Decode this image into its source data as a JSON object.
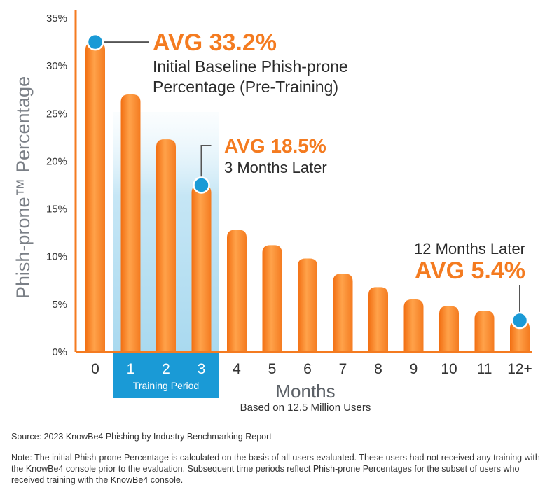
{
  "chart_data": {
    "type": "bar",
    "categories": [
      "0",
      "1",
      "2",
      "3",
      "4",
      "5",
      "6",
      "7",
      "8",
      "9",
      "10",
      "11",
      "12+"
    ],
    "values": [
      32.5,
      27,
      22.3,
      17.5,
      12.8,
      11.2,
      9.8,
      8.2,
      6.8,
      5.5,
      4.8,
      4.3,
      3.3
    ],
    "ylabel": "Phish-prone™ Percentage",
    "xlabel": "Months",
    "subtitle": "Based on 12.5 Million Users",
    "ylim": [
      0,
      35
    ],
    "yticks": [
      "0%",
      "5%",
      "10%",
      "15%",
      "20%",
      "25%",
      "30%",
      "35%"
    ],
    "grid": false,
    "training_period": {
      "label": "Training Period",
      "categories": [
        "1",
        "2",
        "3"
      ]
    },
    "annotations": [
      {
        "category": "0",
        "value": 32.5,
        "avg": "AVG 33.2%",
        "lines": [
          "Initial Baseline Phish-prone",
          "Percentage (Pre-Training)"
        ]
      },
      {
        "category": "3",
        "value": 17.5,
        "avg": "AVG 18.5%",
        "lines": [
          "3 Months Later"
        ]
      },
      {
        "category": "12+",
        "value": 3.3,
        "avg": "AVG 5.4%",
        "lines": [
          "12 Months Later"
        ]
      }
    ],
    "colors": {
      "bar": "#f47b20",
      "bar_light": "#ff9f4a",
      "marker": "#1a9ad6",
      "training": "#1a9ad6",
      "axis": "#f47b20"
    }
  },
  "footer": {
    "source": "Source: 2023 KnowBe4 Phishing by Industry Benchmarking Report",
    "note": "Note: The initial Phish-prone Percentage is calculated on the basis of all users evaluated. These users had not received any training with the KnowBe4 console prior to the evaluation. Subsequent time periods reflect Phish-prone Percentages for the subset of users who received training with the KnowBe4 console."
  }
}
